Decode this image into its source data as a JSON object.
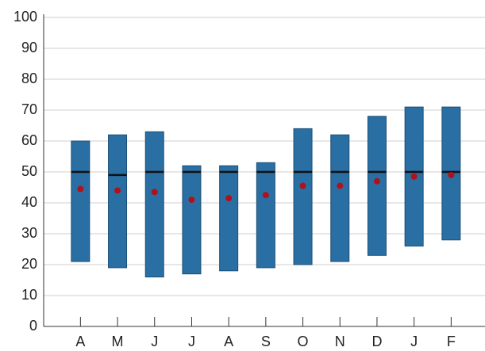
{
  "chart_data": {
    "type": "range",
    "categories": [
      "A",
      "M",
      "J",
      "J",
      "A",
      "S",
      "O",
      "N",
      "D",
      "J",
      "F"
    ],
    "low": [
      21,
      19,
      16,
      17,
      18,
      19,
      20,
      21,
      23,
      26,
      28
    ],
    "high": [
      60,
      62,
      63,
      52,
      52,
      53,
      64,
      62,
      68,
      71,
      71
    ],
    "median": [
      50,
      49,
      50,
      50,
      50,
      50,
      50,
      50,
      50,
      50,
      50
    ],
    "mean": [
      44.5,
      44,
      43.5,
      41,
      41.5,
      42.5,
      45.5,
      45.5,
      47,
      48.5,
      49
    ],
    "bar_color": "#2a6fa3",
    "median_color": "#111111",
    "mean_color": "#b0121b",
    "ylim": [
      0,
      100
    ],
    "yticks": [
      0,
      10,
      20,
      30,
      40,
      50,
      60,
      70,
      80,
      90,
      100
    ],
    "grid": true
  }
}
